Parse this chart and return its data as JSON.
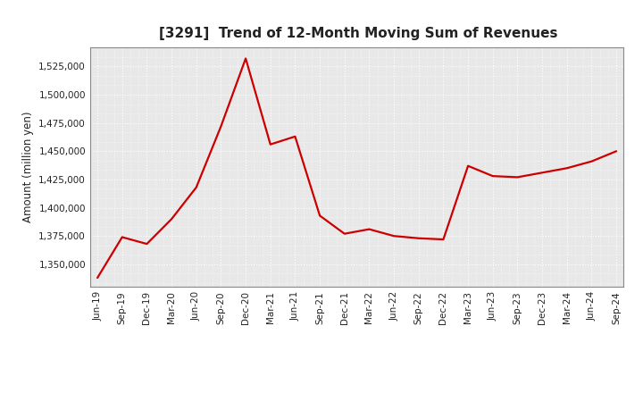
{
  "title": "[3291]  Trend of 12-Month Moving Sum of Revenues",
  "ylabel": "Amount (million yen)",
  "line_color": "#cc0000",
  "background_color": "#ffffff",
  "plot_bg_color": "#e8e8e8",
  "grid_color": "#ffffff",
  "ylim": [
    1330000,
    1542000
  ],
  "yticks": [
    1350000,
    1375000,
    1400000,
    1425000,
    1450000,
    1475000,
    1500000,
    1525000
  ],
  "x_labels": [
    "Jun-19",
    "Sep-19",
    "Dec-19",
    "Mar-20",
    "Jun-20",
    "Sep-20",
    "Dec-20",
    "Mar-21",
    "Jun-21",
    "Sep-21",
    "Dec-21",
    "Mar-22",
    "Jun-22",
    "Sep-22",
    "Dec-22",
    "Mar-23",
    "Jun-23",
    "Sep-23",
    "Dec-23",
    "Mar-24",
    "Jun-24",
    "Sep-24"
  ],
  "y_values": [
    1338000,
    1374000,
    1368000,
    1390000,
    1418000,
    1472000,
    1532000,
    1456000,
    1463000,
    1393000,
    1377000,
    1381000,
    1375000,
    1373000,
    1372000,
    1437000,
    1428000,
    1427000,
    1431000,
    1435000,
    1441000,
    1450000
  ]
}
